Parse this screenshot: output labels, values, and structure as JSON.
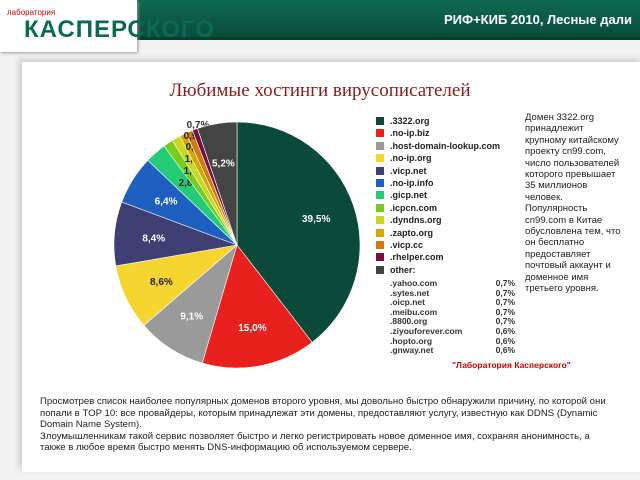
{
  "header": {
    "event": "РИФ+КИБ 2010, Лесные дали"
  },
  "logo": {
    "small": "лаборатория",
    "big": "КАСПЕРСКОГО"
  },
  "colors": {
    "header": "#0b5a45",
    "title": "#8b1a1a"
  },
  "chart_data": {
    "type": "pie",
    "title": "Любимые хостинги вирусописателей",
    "start": "top, clockwise",
    "slices": [
      {
        "name": ".3322.org",
        "value": 39.5,
        "label": "39,5%",
        "color": "#0b4a38"
      },
      {
        "name": ".no-ip.biz",
        "value": 15.0,
        "label": "15,0%",
        "color": "#e8201e"
      },
      {
        "name": ".host-domain-lookup.com",
        "value": 9.1,
        "label": "9,1%",
        "color": "#9a9a9a"
      },
      {
        "name": ".no-ip.org",
        "value": 8.6,
        "label": "8,6%",
        "color": "#f7d531"
      },
      {
        "name": ".vicp.net",
        "value": 8.4,
        "label": "8,4%",
        "color": "#3f3f74"
      },
      {
        "name": ".no-ip.info",
        "value": 6.4,
        "label": "6,4%",
        "color": "#1e5fc2"
      },
      {
        "name": ".gicp.net",
        "value": 2.8,
        "label": "2,8%",
        "color": "#22cc77"
      },
      {
        "name": ".icpcn.com",
        "value": 1.3,
        "label": "1,3%",
        "color": "#77cc22"
      },
      {
        "name": ".dyndns.org",
        "value": 1.1,
        "label": "1,1%",
        "color": "#c8d820"
      },
      {
        "name": ".zapto.org",
        "value": 0.9,
        "label": "0,9%",
        "color": "#d4a800"
      },
      {
        "name": ".vicp.cc",
        "value": 0.9,
        "label": "0,9%",
        "color": "#d07a10"
      },
      {
        "name": ".rhelper.com",
        "value": 0.7,
        "label": "0,7%",
        "color": "#7a1040"
      },
      {
        "name": "other:",
        "value": 5.2,
        "label": "5,2%",
        "color": "#444444"
      }
    ],
    "other_breakdown": [
      {
        "name": ".yahoo.com",
        "label": "0,7%"
      },
      {
        "name": ".sytes.net",
        "label": "0,7%"
      },
      {
        "name": ".oicp.net",
        "label": "0,7%"
      },
      {
        "name": ".meibu.com",
        "label": "0,7%"
      },
      {
        "name": ".8800.org",
        "label": "0,7%"
      },
      {
        "name": ".ziyouforever.com",
        "label": "0,6%"
      },
      {
        "name": ".hopto.org",
        "label": "0,6%"
      },
      {
        "name": ".gnway.net",
        "label": "0,6%"
      }
    ],
    "source": "\"Лаборатория Касперского\""
  },
  "note": "Домен 3322.org принадлежит крупному китайскому проекту cn99.com, число пользователей которого превышает 35 миллионов человек. Популярность cn99.com в Китае обусловлена тем, что он бесплатно предоставляет почтовый аккаунт и доменное имя третьего уровня.",
  "body": [
    "Просмотрев список наиболее популярных доменов второго уровня, мы довольно быстро обнаружили причину, по которой они попали в TOP 10: все провайдеры, которым принадлежат эти домены, предоставляют услугу, известную как DDNS (Dynamic Domain Name System).",
    "Злоумышленникам такой сервис позволяет быстро и легко регистрировать новое доменное имя, сохраняя анонимность, а также в любое время быстро менять DNS-информацию об используемом сервере."
  ]
}
